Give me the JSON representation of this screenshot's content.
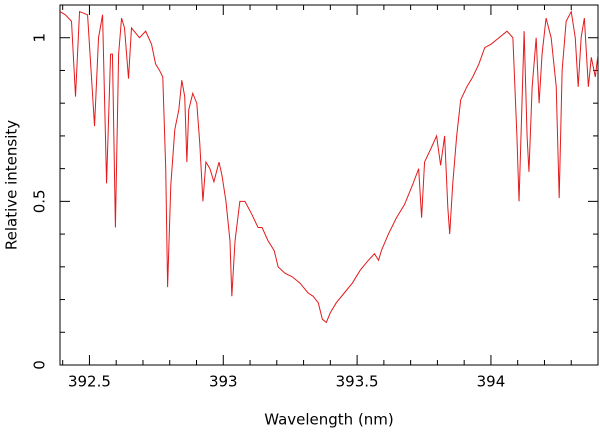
{
  "chart_data": {
    "type": "line",
    "xlabel": "Wavelength (nm)",
    "ylabel": "Relative intensity",
    "color": "#e41a1c",
    "x": [
      392.39,
      392.41,
      392.433,
      392.448,
      392.463,
      392.493,
      392.519,
      392.534,
      392.549,
      392.564,
      392.579,
      392.586,
      392.597,
      392.609,
      392.62,
      392.631,
      392.646,
      392.657,
      392.687,
      392.71,
      392.732,
      392.747,
      392.762,
      392.774,
      392.785,
      392.792,
      392.804,
      392.819,
      392.834,
      392.845,
      392.856,
      392.864,
      392.871,
      392.886,
      392.901,
      392.912,
      392.924,
      392.935,
      392.95,
      392.965,
      392.984,
      392.995,
      393.01,
      393.025,
      393.032,
      393.044,
      393.062,
      393.081,
      393.107,
      393.13,
      393.145,
      393.167,
      393.19,
      393.205,
      393.231,
      393.257,
      393.287,
      393.317,
      393.336,
      393.355,
      393.37,
      393.385,
      393.4,
      393.422,
      393.452,
      393.482,
      393.512,
      393.542,
      393.565,
      393.58,
      393.591,
      393.617,
      393.647,
      393.677,
      393.707,
      393.73,
      393.741,
      393.752,
      393.775,
      393.797,
      393.812,
      393.827,
      393.839,
      393.846,
      393.857,
      393.872,
      393.887,
      393.91,
      393.932,
      393.955,
      393.977,
      394.0,
      394.03,
      394.06,
      394.082,
      394.097,
      394.105,
      394.116,
      394.124,
      394.135,
      394.142,
      394.154,
      394.169,
      394.18,
      394.191,
      394.206,
      394.225,
      394.244,
      394.255,
      394.266,
      394.281,
      394.3,
      394.315,
      394.326,
      394.337,
      394.349,
      394.364,
      394.375,
      394.39,
      394.4
    ],
    "values": [
      1.08,
      1.07,
      1.05,
      0.82,
      1.08,
      1.07,
      0.73,
      1.0,
      1.07,
      0.555,
      0.95,
      0.95,
      0.42,
      0.95,
      1.06,
      1.03,
      0.875,
      1.03,
      1.0,
      1.02,
      0.98,
      0.92,
      0.9,
      0.88,
      0.6,
      0.238,
      0.55,
      0.72,
      0.78,
      0.87,
      0.82,
      0.62,
      0.78,
      0.83,
      0.8,
      0.68,
      0.5,
      0.62,
      0.6,
      0.56,
      0.62,
      0.58,
      0.5,
      0.38,
      0.21,
      0.38,
      0.5,
      0.5,
      0.46,
      0.42,
      0.42,
      0.38,
      0.35,
      0.3,
      0.28,
      0.27,
      0.25,
      0.22,
      0.21,
      0.19,
      0.14,
      0.13,
      0.16,
      0.19,
      0.22,
      0.25,
      0.29,
      0.32,
      0.34,
      0.32,
      0.35,
      0.4,
      0.45,
      0.49,
      0.55,
      0.6,
      0.45,
      0.62,
      0.66,
      0.7,
      0.61,
      0.7,
      0.48,
      0.4,
      0.55,
      0.7,
      0.81,
      0.85,
      0.88,
      0.92,
      0.97,
      0.98,
      1.0,
      1.02,
      1.0,
      0.7,
      0.5,
      0.8,
      1.02,
      0.7,
      0.59,
      0.85,
      1.0,
      0.8,
      0.95,
      1.06,
      1.0,
      0.85,
      0.51,
      0.9,
      1.05,
      1.08,
      1.0,
      0.85,
      1.0,
      1.06,
      0.85,
      0.94,
      0.88,
      0.95
    ],
    "xlim": [
      392.39,
      394.4
    ],
    "ylim": [
      0,
      1.1
    ],
    "xticks": [
      392.5,
      393,
      393.5,
      394
    ],
    "yticks": [
      0,
      0.5,
      1
    ],
    "xminorticks": [
      392.4,
      392.6,
      392.7,
      392.8,
      392.9,
      393.1,
      393.2,
      393.3,
      393.4,
      393.6,
      393.7,
      393.8,
      393.9,
      394.1,
      394.2,
      394.3,
      394.4
    ],
    "yminorticks": [
      0.1,
      0.2,
      0.3,
      0.4,
      0.6,
      0.7,
      0.8,
      0.9,
      1.1
    ]
  }
}
